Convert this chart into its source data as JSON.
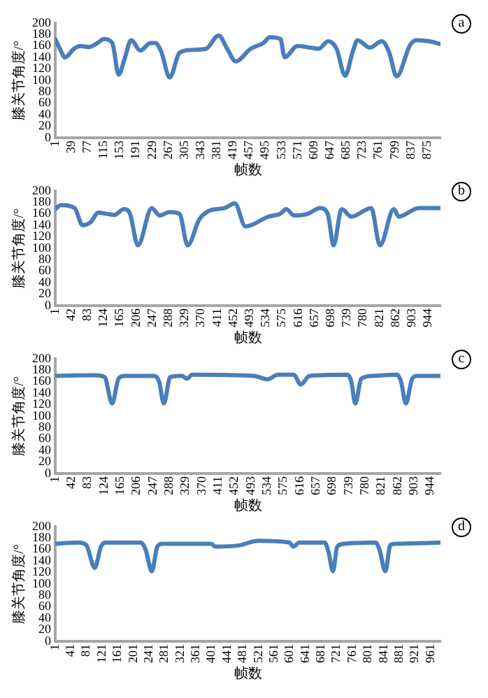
{
  "chart_data": [
    {
      "type": "line",
      "xlabel": "帧数",
      "ylabel": "膝关节角度/°",
      "annotations": [
        "a"
      ],
      "color": "#4a7ebb",
      "grid": false,
      "legend": false,
      "marker": "none",
      "line_style": "solid",
      "xlim": [
        1,
        906
      ],
      "xticks": [
        1,
        39,
        77,
        115,
        153,
        191,
        229,
        267,
        305,
        343,
        381,
        419,
        457,
        495,
        533,
        571,
        609,
        647,
        685,
        723,
        761,
        799,
        837,
        875
      ],
      "ylim": [
        0,
        200
      ],
      "yticks": [
        0,
        20,
        40,
        60,
        80,
        100,
        120,
        140,
        160,
        180,
        200
      ],
      "x": [
        1,
        12,
        24,
        45,
        60,
        80,
        100,
        115,
        135,
        150,
        165,
        179,
        201,
        225,
        236,
        250,
        270,
        293,
        320,
        355,
        385,
        405,
        425,
        460,
        490,
        505,
        530,
        540,
        570,
        600,
        620,
        642,
        662,
        682,
        700,
        711,
        740,
        768,
        785,
        803,
        835,
        850,
        880,
        906
      ],
      "values": [
        172,
        155,
        140,
        155,
        160,
        158,
        165,
        172,
        165,
        110,
        140,
        170,
        152,
        165,
        165,
        150,
        105,
        148,
        153,
        155,
        178,
        155,
        133,
        155,
        165,
        175,
        172,
        140,
        160,
        157,
        155,
        168,
        155,
        108,
        150,
        170,
        157,
        168,
        150,
        107,
        162,
        170,
        168,
        163
      ]
    },
    {
      "type": "line",
      "xlabel": "帧数",
      "ylabel": "膝关节角度/°",
      "annotations": [
        "b"
      ],
      "color": "#4a7ebb",
      "grid": false,
      "legend": false,
      "marker": "none",
      "line_style": "solid",
      "xlim": [
        1,
        975
      ],
      "xticks": [
        1,
        42,
        83,
        124,
        165,
        206,
        247,
        288,
        329,
        370,
        411,
        452,
        493,
        534,
        575,
        616,
        657,
        698,
        739,
        780,
        821,
        862,
        903,
        944
      ],
      "ylim": [
        0,
        200
      ],
      "yticks": [
        0,
        20,
        40,
        60,
        80,
        100,
        120,
        140,
        160,
        180,
        200
      ],
      "x": [
        1,
        15,
        50,
        70,
        90,
        110,
        130,
        150,
        175,
        190,
        210,
        245,
        265,
        290,
        315,
        336,
        365,
        390,
        430,
        455,
        482,
        540,
        570,
        585,
        605,
        640,
        670,
        690,
        705,
        725,
        750,
        800,
        822,
        857,
        870,
        920,
        950,
        975
      ],
      "values": [
        168,
        175,
        170,
        140,
        145,
        162,
        160,
        158,
        168,
        160,
        105,
        170,
        157,
        163,
        160,
        105,
        150,
        165,
        170,
        178,
        138,
        155,
        160,
        168,
        157,
        160,
        170,
        160,
        105,
        168,
        155,
        170,
        105,
        168,
        155,
        170,
        170,
        170
      ]
    },
    {
      "type": "line",
      "xlabel": "帧数",
      "ylabel": "膝关节角度/°",
      "annotations": [
        "c"
      ],
      "color": "#4a7ebb",
      "grid": false,
      "legend": false,
      "marker": "none",
      "line_style": "solid",
      "xlim": [
        1,
        969
      ],
      "xticks": [
        1,
        42,
        83,
        124,
        165,
        206,
        247,
        288,
        329,
        370,
        411,
        452,
        493,
        534,
        575,
        616,
        657,
        698,
        739,
        780,
        821,
        862,
        903,
        944
      ],
      "ylim": [
        0,
        200
      ],
      "yticks": [
        0,
        20,
        40,
        60,
        80,
        100,
        120,
        140,
        160,
        180,
        200
      ],
      "x": [
        1,
        100,
        125,
        144,
        160,
        175,
        250,
        262,
        274,
        290,
        320,
        332,
        345,
        500,
        535,
        560,
        600,
        618,
        640,
        735,
        745,
        755,
        770,
        800,
        860,
        870,
        882,
        898,
        910,
        969
      ],
      "values": [
        170,
        171,
        168,
        122,
        165,
        170,
        170,
        160,
        122,
        168,
        170,
        165,
        172,
        170,
        164,
        172,
        172,
        155,
        170,
        172,
        160,
        122,
        165,
        170,
        172,
        160,
        122,
        165,
        170,
        170
      ]
    },
    {
      "type": "line",
      "xlabel": "帧数",
      "ylabel": "膝关节角度/°",
      "annotations": [
        "d"
      ],
      "color": "#4a7ebb",
      "grid": false,
      "legend": false,
      "marker": "none",
      "line_style": "solid",
      "xlim": [
        1,
        986
      ],
      "xticks": [
        1,
        41,
        81,
        121,
        161,
        201,
        241,
        281,
        321,
        361,
        401,
        441,
        481,
        521,
        561,
        601,
        641,
        681,
        721,
        761,
        801,
        841,
        881,
        921,
        961
      ],
      "ylim": [
        0,
        200
      ],
      "yticks": [
        0,
        20,
        40,
        60,
        80,
        100,
        120,
        140,
        160,
        180,
        200
      ],
      "x": [
        1,
        60,
        80,
        102,
        118,
        130,
        220,
        232,
        248,
        262,
        275,
        400,
        410,
        470,
        520,
        600,
        610,
        625,
        690,
        700,
        711,
        722,
        740,
        820,
        830,
        845,
        858,
        875,
        986
      ],
      "values": [
        170,
        172,
        168,
        128,
        165,
        172,
        172,
        160,
        122,
        165,
        170,
        170,
        165,
        167,
        175,
        172,
        165,
        172,
        172,
        155,
        122,
        165,
        170,
        172,
        160,
        122,
        168,
        170,
        172
      ]
    }
  ]
}
